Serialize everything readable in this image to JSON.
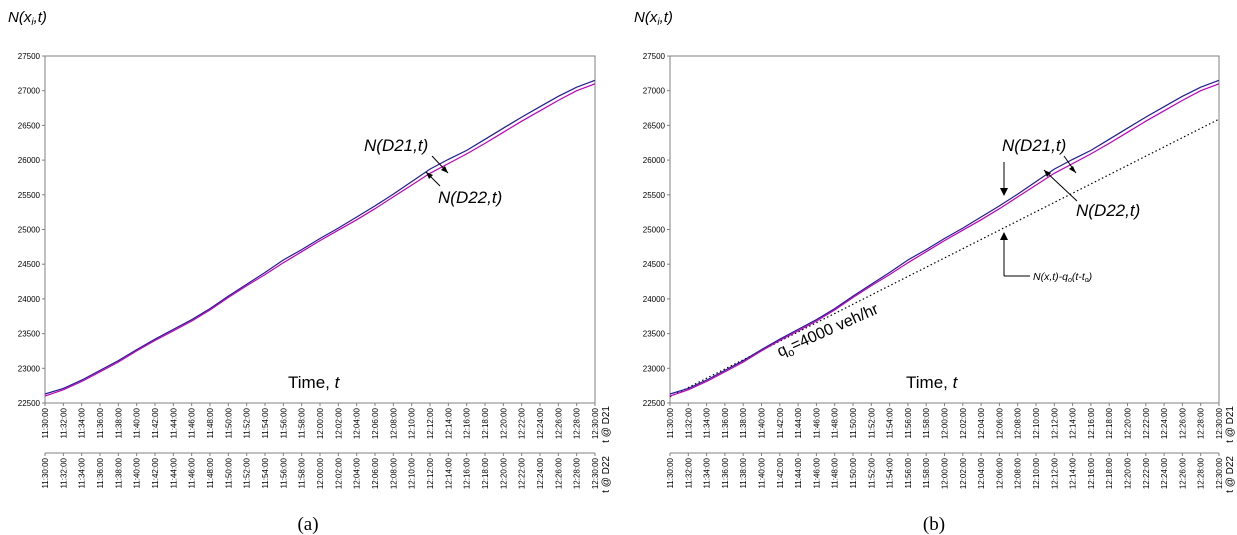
{
  "chart_data": [
    {
      "type": "line",
      "caption": "(a)",
      "ylabel_main": "N(x",
      "ylabel_sub": "i",
      "ylabel_end": ",t)",
      "time_label_prefix": "Time, ",
      "time_label_var": "t",
      "ylim": [
        22500,
        27500
      ],
      "yticks": [
        22500,
        23000,
        23500,
        24000,
        24500,
        25000,
        25500,
        26000,
        26500,
        27000,
        27500
      ],
      "grid": false,
      "x_times_d21": [
        "11:30:00",
        "11:32:00",
        "11:34:00",
        "11:36:00",
        "11:38:00",
        "11:40:00",
        "11:42:00",
        "11:44:00",
        "11:46:00",
        "11:48:00",
        "11:50:00",
        "11:52:00",
        "11:54:00",
        "11:56:00",
        "11:58:00",
        "12:00:00",
        "12:02:00",
        "12:04:00",
        "12:06:00",
        "12:08:00",
        "12:10:00",
        "12:12:00",
        "12:14:00",
        "12:16:00",
        "12:18:00",
        "12:20:00",
        "12:22:00",
        "12:24:00",
        "12:26:00",
        "12:28:00",
        "12:30:00"
      ],
      "x_times_d22": [
        "11:30:00",
        "11:32:00",
        "11:34:00",
        "11:36:00",
        "11:38:00",
        "11:40:00",
        "11:42:00",
        "11:44:00",
        "11:46:00",
        "11:48:00",
        "11:50:00",
        "11:52:00",
        "11:54:00",
        "11:56:00",
        "11:58:00",
        "12:00:00",
        "12:02:00",
        "12:04:00",
        "12:06:00",
        "12:08:00",
        "12:10:00",
        "12:12:00",
        "12:14:00",
        "12:16:00",
        "12:18:00",
        "12:20:00",
        "12:22:00",
        "12:24:00",
        "12:26:00",
        "12:28:00",
        "12:30:00"
      ],
      "axis_label_d21": "t @ D21",
      "axis_label_d22": "t @ D22",
      "series": [
        {
          "name": "N(D21,t)",
          "color": "#1f1f8f",
          "values": [
            22630,
            22710,
            22830,
            22970,
            23110,
            23270,
            23420,
            23560,
            23700,
            23860,
            24040,
            24210,
            24380,
            24560,
            24710,
            24870,
            25020,
            25180,
            25340,
            25510,
            25690,
            25870,
            26010,
            26140,
            26300,
            26460,
            26620,
            26770,
            26920,
            27050,
            27150
          ]
        },
        {
          "name": "N(D22,t)",
          "color": "#c000c0",
          "values": [
            22600,
            22690,
            22810,
            22950,
            23090,
            23250,
            23400,
            23540,
            23680,
            23840,
            24020,
            24190,
            24350,
            24520,
            24680,
            24840,
            24990,
            25140,
            25300,
            25470,
            25640,
            25810,
            25950,
            26090,
            26240,
            26400,
            26560,
            26710,
            26860,
            27000,
            27100
          ]
        }
      ]
    },
    {
      "type": "line",
      "caption": "(b)",
      "ylabel_main": "N(x",
      "ylabel_sub": "i",
      "ylabel_end": ",t)",
      "time_label_prefix": "Time, ",
      "time_label_var": "t",
      "ylim": [
        22500,
        27500
      ],
      "yticks": [
        22500,
        23000,
        23500,
        24000,
        24500,
        25000,
        25500,
        26000,
        26500,
        27000,
        27500
      ],
      "grid": false,
      "x_times_d21": [
        "11:30:00",
        "11:32:00",
        "11:34:00",
        "11:36:00",
        "11:38:00",
        "11:40:00",
        "11:42:00",
        "11:44:00",
        "11:46:00",
        "11:48:00",
        "11:50:00",
        "11:52:00",
        "11:54:00",
        "11:56:00",
        "11:58:00",
        "12:00:00",
        "12:02:00",
        "12:04:00",
        "12:06:00",
        "12:08:00",
        "12:10:00",
        "12:12:00",
        "12:14:00",
        "12:16:00",
        "12:18:00",
        "12:20:00",
        "12:22:00",
        "12:24:00",
        "12:26:00",
        "12:28:00",
        "12:30:00"
      ],
      "x_times_d22": [
        "11:30:00",
        "11:32:00",
        "11:34:00",
        "11:36:00",
        "11:38:00",
        "11:40:00",
        "11:42:00",
        "11:44:00",
        "11:46:00",
        "11:48:00",
        "11:50:00",
        "11:52:00",
        "11:54:00",
        "11:56:00",
        "11:58:00",
        "12:00:00",
        "12:02:00",
        "12:04:00",
        "12:06:00",
        "12:08:00",
        "12:10:00",
        "12:12:00",
        "12:14:00",
        "12:16:00",
        "12:18:00",
        "12:20:00",
        "12:22:00",
        "12:24:00",
        "12:26:00",
        "12:28:00",
        "12:30:00"
      ],
      "axis_label_d21": "t @ D21",
      "axis_label_d22": "t @ D22",
      "series": [
        {
          "name": "N(D21,t)",
          "color": "#1f1f8f",
          "values": [
            22630,
            22710,
            22830,
            22970,
            23110,
            23270,
            23420,
            23560,
            23700,
            23860,
            24040,
            24210,
            24380,
            24560,
            24710,
            24870,
            25020,
            25180,
            25340,
            25510,
            25690,
            25870,
            26010,
            26140,
            26300,
            26460,
            26620,
            26770,
            26920,
            27050,
            27150
          ]
        },
        {
          "name": "N(D22,t)",
          "color": "#c000c0",
          "values": [
            22600,
            22690,
            22810,
            22950,
            23090,
            23250,
            23400,
            23540,
            23680,
            23840,
            24020,
            24190,
            24350,
            24520,
            24680,
            24840,
            24990,
            25140,
            25300,
            25470,
            25640,
            25810,
            25950,
            26090,
            26240,
            26400,
            26560,
            26710,
            26860,
            27000,
            27100
          ]
        }
      ],
      "reference_line": {
        "start_value": 22590,
        "end_value": 26590,
        "style": "dotted"
      },
      "reference_label": "N(x,t)-q",
      "reference_label_sub": "o",
      "reference_label_mid": "(t-t",
      "reference_label_sub2": "o",
      "reference_label_end": ")",
      "rate_label_q": "q",
      "rate_label_sub": "o",
      "rate_label_rest": "=4000 veh/hr"
    }
  ]
}
